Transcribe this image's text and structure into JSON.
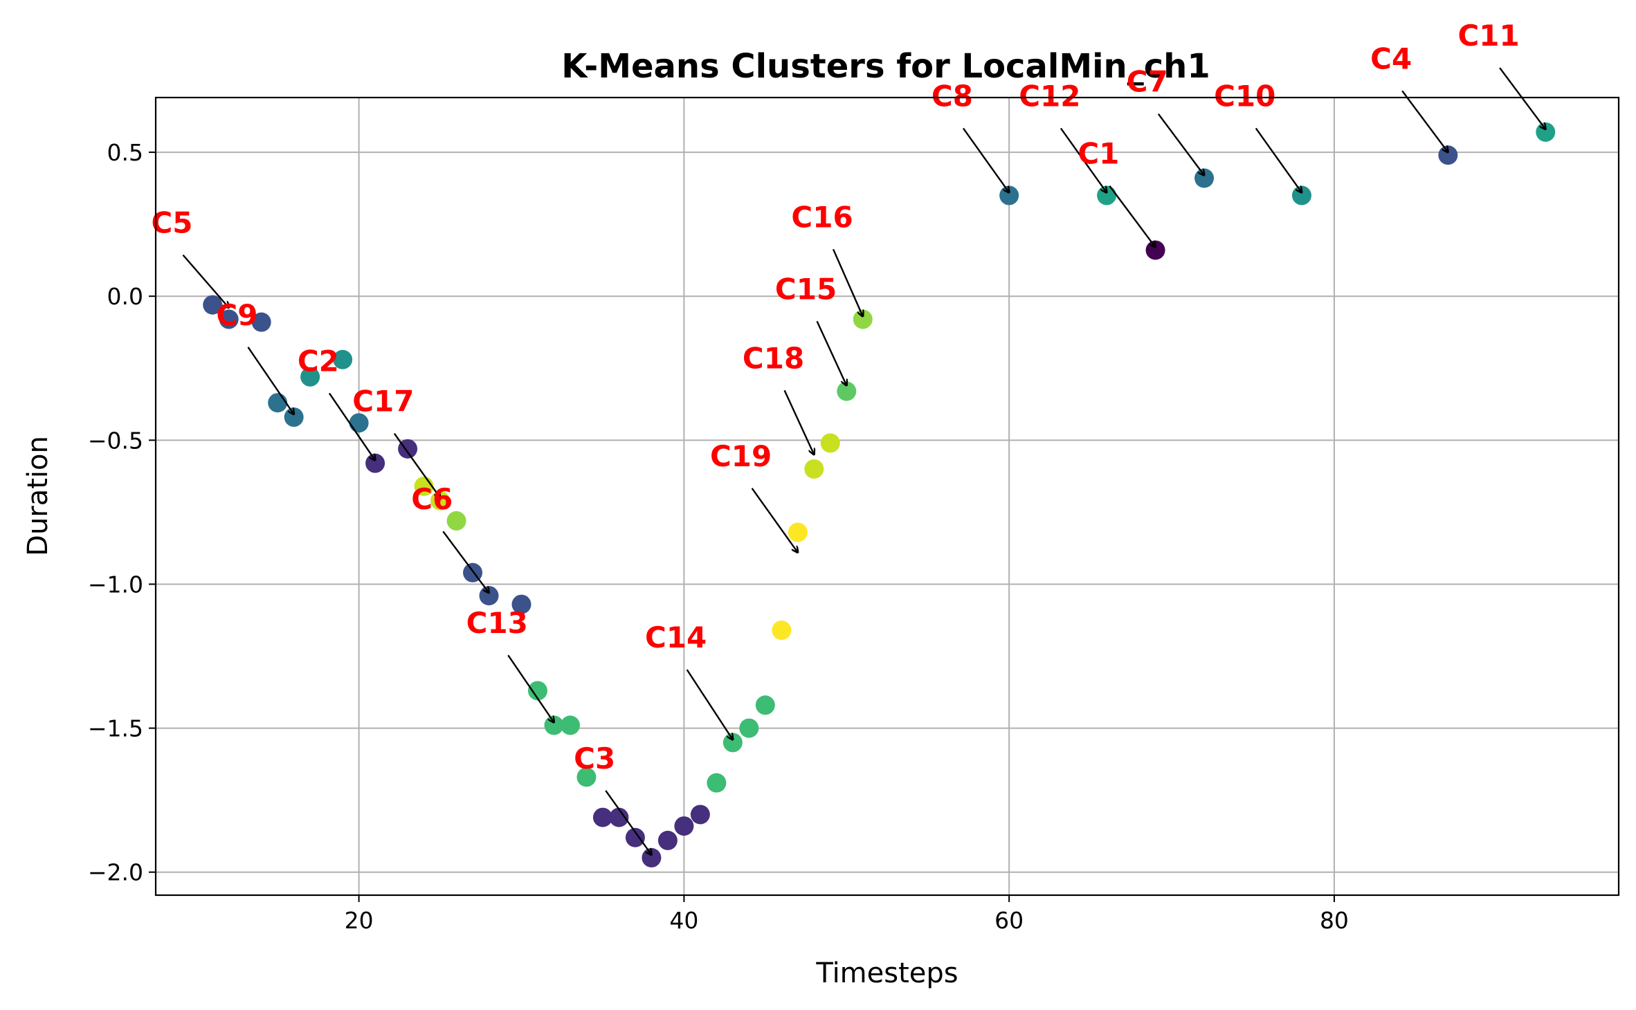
{
  "chart_data": {
    "type": "scatter",
    "title": "K-Means Clusters for LocalMin_ch1",
    "xlabel": "Timesteps",
    "ylabel": "Duration",
    "xlim": [
      7.5,
      97.5
    ],
    "ylim": [
      -2.08,
      0.69
    ],
    "grid": true,
    "xticks": [
      20,
      40,
      60,
      80
    ],
    "xtick_labels": [
      "20",
      "40",
      "60",
      "80"
    ],
    "yticks": [
      0.5,
      0.0,
      -0.5,
      -1.0,
      -1.5,
      -2.0
    ],
    "ytick_labels": [
      "0.5",
      "0.0",
      "−0.5",
      "−1.0",
      "−1.5",
      "−2.0"
    ],
    "colors": {
      "c0": "#440154",
      "c1": "#462f7c",
      "c2": "#3b528b",
      "c3": "#2c728e",
      "c4": "#21918c",
      "c5": "#1fa187",
      "c6": "#3dbc74",
      "c7": "#5ec962",
      "c8": "#90d743",
      "c9": "#c8e020",
      "c10": "#fde725"
    },
    "points": [
      {
        "x": 11,
        "y": -0.03,
        "color": "c2"
      },
      {
        "x": 12,
        "y": -0.08,
        "color": "c2"
      },
      {
        "x": 14,
        "y": -0.09,
        "color": "c2"
      },
      {
        "x": 15,
        "y": -0.37,
        "color": "c3"
      },
      {
        "x": 16,
        "y": -0.42,
        "color": "c3"
      },
      {
        "x": 17,
        "y": -0.28,
        "color": "c4"
      },
      {
        "x": 19,
        "y": -0.22,
        "color": "c4"
      },
      {
        "x": 20,
        "y": -0.44,
        "color": "c3"
      },
      {
        "x": 21,
        "y": -0.58,
        "color": "c1"
      },
      {
        "x": 23,
        "y": -0.53,
        "color": "c1"
      },
      {
        "x": 24,
        "y": -0.66,
        "color": "c9"
      },
      {
        "x": 25,
        "y": -0.71,
        "color": "c9"
      },
      {
        "x": 26,
        "y": -0.78,
        "color": "c8"
      },
      {
        "x": 27,
        "y": -0.96,
        "color": "c2"
      },
      {
        "x": 28,
        "y": -1.04,
        "color": "c2"
      },
      {
        "x": 30,
        "y": -1.07,
        "color": "c2"
      },
      {
        "x": 31,
        "y": -1.37,
        "color": "c6"
      },
      {
        "x": 32,
        "y": -1.49,
        "color": "c6"
      },
      {
        "x": 33,
        "y": -1.49,
        "color": "c6"
      },
      {
        "x": 34,
        "y": -1.67,
        "color": "c6"
      },
      {
        "x": 35,
        "y": -1.81,
        "color": "c1"
      },
      {
        "x": 36,
        "y": -1.81,
        "color": "c1"
      },
      {
        "x": 37,
        "y": -1.88,
        "color": "c1"
      },
      {
        "x": 38,
        "y": -1.95,
        "color": "c1"
      },
      {
        "x": 39,
        "y": -1.89,
        "color": "c1"
      },
      {
        "x": 40,
        "y": -1.84,
        "color": "c1"
      },
      {
        "x": 41,
        "y": -1.8,
        "color": "c1"
      },
      {
        "x": 42,
        "y": -1.69,
        "color": "c6"
      },
      {
        "x": 43,
        "y": -1.55,
        "color": "c6"
      },
      {
        "x": 44,
        "y": -1.5,
        "color": "c6"
      },
      {
        "x": 45,
        "y": -1.42,
        "color": "c6"
      },
      {
        "x": 46,
        "y": -1.16,
        "color": "c10"
      },
      {
        "x": 47,
        "y": -0.82,
        "color": "c10"
      },
      {
        "x": 48,
        "y": -0.6,
        "color": "c9"
      },
      {
        "x": 49,
        "y": -0.51,
        "color": "c9"
      },
      {
        "x": 50,
        "y": -0.33,
        "color": "c7"
      },
      {
        "x": 51,
        "y": -0.08,
        "color": "c8"
      },
      {
        "x": 60,
        "y": 0.35,
        "color": "c3"
      },
      {
        "x": 66,
        "y": 0.35,
        "color": "c5"
      },
      {
        "x": 69,
        "y": 0.16,
        "color": "c0"
      },
      {
        "x": 72,
        "y": 0.41,
        "color": "c3"
      },
      {
        "x": 78,
        "y": 0.35,
        "color": "c4"
      },
      {
        "x": 87,
        "y": 0.49,
        "color": "c2"
      },
      {
        "x": 93,
        "y": 0.57,
        "color": "c5"
      }
    ],
    "annotations": [
      {
        "label": "C5",
        "text_x": 8.5,
        "text_y": 0.22,
        "target_x": 12,
        "target_y": -0.04
      },
      {
        "label": "C9",
        "text_x": 12.5,
        "text_y": -0.1,
        "target_x": 16,
        "target_y": -0.41
      },
      {
        "label": "C2",
        "text_x": 17.5,
        "text_y": -0.26,
        "target_x": 21,
        "target_y": -0.57
      },
      {
        "label": "C17",
        "text_x": 21.5,
        "text_y": -0.4,
        "target_x": 25,
        "target_y": -0.7
      },
      {
        "label": "C6",
        "text_x": 24.5,
        "text_y": -0.74,
        "target_x": 28,
        "target_y": -1.03
      },
      {
        "label": "C13",
        "text_x": 28.5,
        "text_y": -1.17,
        "target_x": 32,
        "target_y": -1.48
      },
      {
        "label": "C3",
        "text_x": 34.5,
        "text_y": -1.64,
        "target_x": 38,
        "target_y": -1.94
      },
      {
        "label": "C14",
        "text_x": 39.5,
        "text_y": -1.22,
        "target_x": 43,
        "target_y": -1.54
      },
      {
        "label": "C19",
        "text_x": 43.5,
        "text_y": -0.59,
        "target_x": 47,
        "target_y": -0.89
      },
      {
        "label": "C18",
        "text_x": 45.5,
        "text_y": -0.25,
        "target_x": 48,
        "target_y": -0.55
      },
      {
        "label": "C15",
        "text_x": 47.5,
        "text_y": -0.01,
        "target_x": 50,
        "target_y": -0.31
      },
      {
        "label": "C16",
        "text_x": 48.5,
        "text_y": 0.24,
        "target_x": 51,
        "target_y": -0.07
      },
      {
        "label": "C8",
        "text_x": 56.5,
        "text_y": 0.66,
        "target_x": 60,
        "target_y": 0.36
      },
      {
        "label": "C12",
        "text_x": 62.5,
        "text_y": 0.66,
        "target_x": 66,
        "target_y": 0.36
      },
      {
        "label": "C1",
        "text_x": 65.5,
        "text_y": 0.46,
        "target_x": 69,
        "target_y": 0.17
      },
      {
        "label": "C7",
        "text_x": 68.5,
        "text_y": 0.71,
        "target_x": 72,
        "target_y": 0.42
      },
      {
        "label": "C10",
        "text_x": 74.5,
        "text_y": 0.66,
        "target_x": 78,
        "target_y": 0.36
      },
      {
        "label": "C4",
        "text_x": 83.5,
        "text_y": 0.79,
        "target_x": 87,
        "target_y": 0.5
      },
      {
        "label": "C11",
        "text_x": 89.5,
        "text_y": 0.87,
        "target_x": 93,
        "target_y": 0.58
      }
    ]
  }
}
